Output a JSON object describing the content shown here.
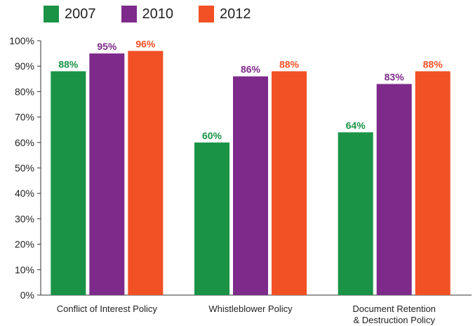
{
  "chart_data": {
    "type": "bar",
    "title": "",
    "xlabel": "",
    "ylabel": "",
    "categories": [
      "Conflict of Interest Policy",
      "Whistleblower Policy",
      "Document Retention\n& Destruction Policy"
    ],
    "series": [
      {
        "name": "2007",
        "color": "#1a9347",
        "values": [
          88,
          60,
          64
        ],
        "labels": [
          "88%",
          "60%",
          "64%"
        ]
      },
      {
        "name": "2010",
        "color": "#7d2a8a",
        "values": [
          95,
          86,
          83
        ],
        "labels": [
          "95%",
          "86%",
          "83%"
        ]
      },
      {
        "name": "2012",
        "color": "#f15125",
        "values": [
          96,
          88,
          88
        ],
        "labels": [
          "96%",
          "88%",
          "88%"
        ]
      }
    ],
    "ylim": [
      0,
      100
    ],
    "yticks": [
      "0%",
      "10%",
      "20%",
      "30%",
      "40%",
      "50%",
      "60%",
      "70%",
      "80%",
      "90%",
      "100%"
    ],
    "grid": false,
    "legend_position": "top-left"
  }
}
